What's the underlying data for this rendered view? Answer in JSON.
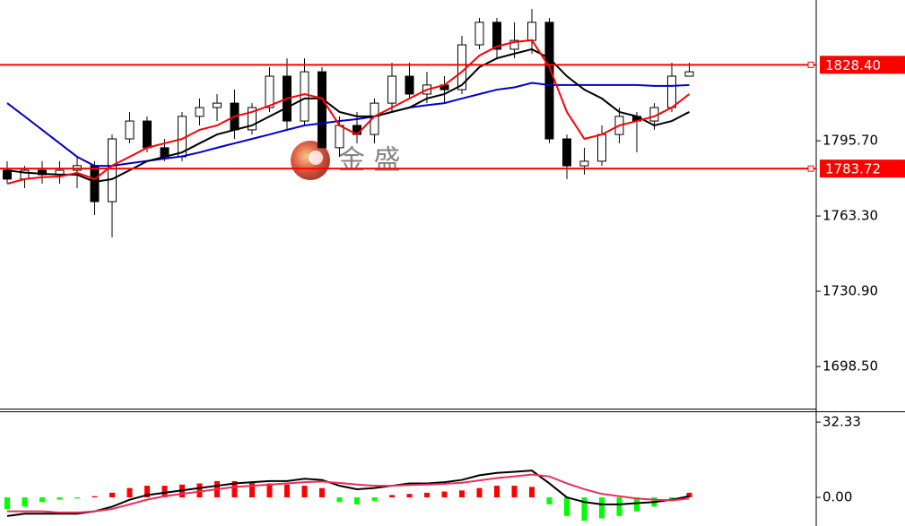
{
  "watermark": "金 盛",
  "chart_data": [
    {
      "type": "candlestick",
      "ylim": [
        1680.0,
        1856.3
      ],
      "yticks": [
        {
          "value": 1795.7,
          "label": "1795.70"
        },
        {
          "value": 1763.3,
          "label": "1763.30"
        },
        {
          "value": 1730.9,
          "label": "1730.90"
        },
        {
          "value": 1698.5,
          "label": "1698.50"
        }
      ],
      "up_color": "#ffffff",
      "down_color": "#000000",
      "open": [
        1783.0,
        1779.2,
        1783.0,
        1781.1,
        1783.0,
        1785.0,
        1769.5,
        1796.5,
        1804.2,
        1792.7,
        1788.8,
        1806.2,
        1810.0,
        1811.9,
        1800.4,
        1810.0,
        1823.5,
        1804.2,
        1825.4,
        1792.7,
        1802.3,
        1798.4,
        1811.9,
        1823.5,
        1815.8,
        1819.7,
        1817.7,
        1837.0,
        1846.7,
        1835.1,
        1838.9,
        1846.7,
        1796.5,
        1784.9,
        1786.9,
        1798.4,
        1806.2,
        1804.2,
        1810.0,
        1823.5
      ],
      "high": [
        1786.9,
        1784.9,
        1786.9,
        1786.9,
        1788.8,
        1786.9,
        1798.4,
        1808.1,
        1806.2,
        1796.5,
        1808.1,
        1813.9,
        1815.8,
        1817.7,
        1811.9,
        1827.4,
        1831.2,
        1831.2,
        1827.4,
        1806.2,
        1808.1,
        1813.9,
        1829.3,
        1829.3,
        1825.4,
        1823.5,
        1840.9,
        1848.6,
        1848.6,
        1846.7,
        1852.4,
        1848.6,
        1798.4,
        1792.7,
        1802.3,
        1810.0,
        1808.1,
        1811.9,
        1829.3,
        1829.3
      ],
      "low": [
        1777.2,
        1775.3,
        1777.2,
        1777.2,
        1775.3,
        1763.7,
        1754.1,
        1794.6,
        1790.7,
        1786.9,
        1786.9,
        1802.3,
        1804.2,
        1796.5,
        1798.4,
        1808.1,
        1800.4,
        1802.3,
        1792.7,
        1788.8,
        1794.6,
        1794.6,
        1808.1,
        1813.9,
        1811.9,
        1811.9,
        1815.8,
        1835.1,
        1831.2,
        1831.2,
        1833.2,
        1794.6,
        1779.2,
        1781.1,
        1784.9,
        1794.6,
        1790.7,
        1800.4,
        1808.1,
        1823.5
      ],
      "close": [
        1779.2,
        1783.0,
        1781.1,
        1783.0,
        1785.0,
        1769.5,
        1796.5,
        1804.2,
        1792.7,
        1788.8,
        1806.2,
        1810.0,
        1811.9,
        1800.4,
        1810.0,
        1823.5,
        1804.2,
        1825.4,
        1792.7,
        1802.3,
        1798.4,
        1811.9,
        1823.5,
        1815.8,
        1819.7,
        1817.7,
        1837.0,
        1846.7,
        1835.1,
        1838.9,
        1846.7,
        1796.5,
        1784.9,
        1786.9,
        1798.4,
        1806.2,
        1804.2,
        1810.0,
        1823.5,
        1825.4
      ],
      "lines": [
        {
          "color": "#0000c8",
          "values": [
            1811.9,
            1806.2,
            1800.4,
            1794.6,
            1788.8,
            1784.9,
            1784.9,
            1786.0,
            1787.0,
            1788.0,
            1789.0,
            1790.7,
            1792.7,
            1794.6,
            1796.5,
            1798.4,
            1800.4,
            1802.3,
            1803.2,
            1804.2,
            1805.0,
            1806.2,
            1808.1,
            1810.0,
            1811.0,
            1811.9,
            1813.9,
            1815.8,
            1817.7,
            1818.7,
            1820.6,
            1819.7,
            1819.7,
            1819.7,
            1819.7,
            1819.7,
            1819.7,
            1819.3,
            1819.3,
            1819.7
          ]
        },
        {
          "color": "#000000",
          "values": [
            1783.0,
            1782.0,
            1781.5,
            1781.1,
            1781.1,
            1778.0,
            1779.2,
            1783.0,
            1786.9,
            1788.8,
            1790.7,
            1794.6,
            1798.4,
            1800.4,
            1802.3,
            1806.2,
            1810.0,
            1813.9,
            1813.9,
            1808.1,
            1806.2,
            1806.2,
            1808.1,
            1810.0,
            1813.9,
            1815.8,
            1819.7,
            1827.4,
            1831.2,
            1833.2,
            1835.1,
            1831.2,
            1823.5,
            1817.7,
            1813.9,
            1808.1,
            1806.2,
            1802.3,
            1804.2,
            1808.1
          ]
        },
        {
          "color": "#ff0000",
          "values": [
            1777.2,
            1779.2,
            1780.0,
            1780.3,
            1781.9,
            1779.2,
            1785.0,
            1788.8,
            1792.7,
            1794.6,
            1796.5,
            1800.4,
            1802.3,
            1806.2,
            1808.1,
            1810.8,
            1813.9,
            1815.8,
            1813.9,
            1802.3,
            1798.4,
            1806.2,
            1810.0,
            1813.9,
            1817.7,
            1819.7,
            1825.4,
            1832.4,
            1836.3,
            1838.2,
            1839.0,
            1827.4,
            1808.1,
            1796.5,
            1798.4,
            1802.3,
            1804.2,
            1806.2,
            1810.0,
            1815.8
          ]
        }
      ],
      "levels": [
        {
          "value": 1828.4,
          "label": "1828.40",
          "color": "#ff0000"
        },
        {
          "value": 1783.72,
          "label": "1783.72",
          "color": "#ff0000"
        }
      ]
    },
    {
      "type": "macd",
      "ylim": [
        -12.3,
        36.6
      ],
      "yticks": [
        32.33,
        {
          "value": 0,
          "label": "0.00"
        }
      ],
      "up_color": "#ff0000",
      "down_color": "#00ff00",
      "values": [
        -5,
        -4,
        -2,
        -1,
        -0.5,
        0.5,
        2,
        4,
        5,
        5,
        5.5,
        6,
        7,
        7,
        6.5,
        6,
        5.5,
        5,
        4,
        -2,
        -3,
        -1.5,
        1,
        1.5,
        2,
        2.5,
        3,
        4,
        5,
        5,
        4.5,
        -3,
        -8,
        -10,
        -9,
        -8,
        -6,
        -4,
        -1,
        2
      ],
      "lines": [
        {
          "color": "#000000",
          "values": [
            -8,
            -7,
            -7,
            -7,
            -7,
            -6,
            -4,
            -1,
            1,
            2,
            3,
            4,
            5,
            6,
            6.5,
            7,
            7,
            8,
            7.5,
            5,
            3.5,
            4,
            5,
            6,
            6,
            6.5,
            7.5,
            9.5,
            10.5,
            11,
            11.5,
            6,
            0,
            -2,
            -3,
            -3,
            -2.5,
            -2,
            -1,
            0.5
          ]
        },
        {
          "color": "#e8305a",
          "values": [
            -6,
            -6,
            -6,
            -6.5,
            -6.5,
            -6,
            -5,
            -3,
            -1,
            0.5,
            1.5,
            2.5,
            3.5,
            4.5,
            5,
            5.5,
            6,
            6.5,
            6.8,
            6.2,
            5.5,
            5,
            5,
            5.3,
            5.5,
            5.8,
            6.3,
            7.3,
            8.3,
            9,
            9.8,
            9,
            6,
            3.5,
            1.5,
            0.5,
            -0.5,
            -1,
            -1.3,
            -0.5
          ]
        }
      ]
    }
  ]
}
